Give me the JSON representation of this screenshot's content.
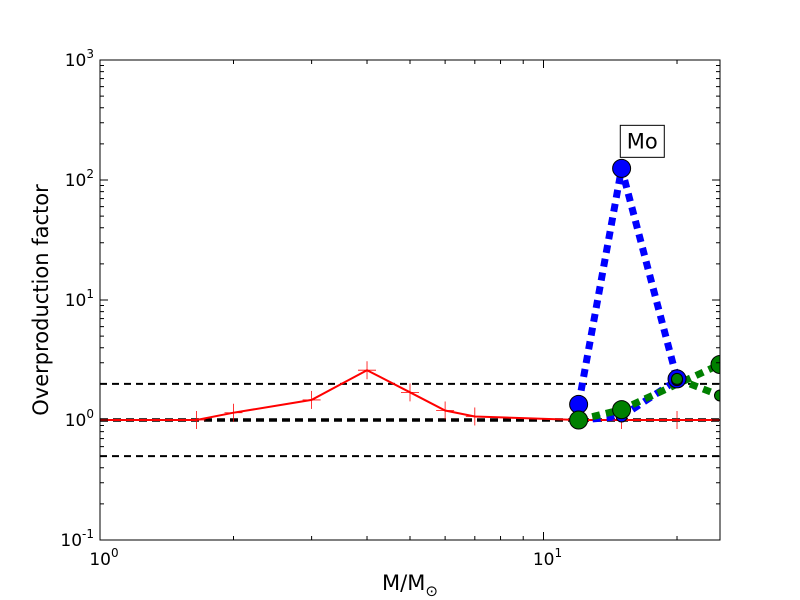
{
  "chart_data": {
    "type": "line",
    "xlabel": "M/M",
    "xlabel_subscript": "⊙",
    "ylabel": "Overproduction factor",
    "xscale": "log",
    "yscale": "log",
    "xlim": [
      1,
      25
    ],
    "ylim": [
      0.1,
      1000
    ],
    "x_ticks": [
      {
        "base": "10",
        "exp": "0",
        "value": 1
      },
      {
        "base": "10",
        "exp": "1",
        "value": 10
      }
    ],
    "y_ticks": [
      {
        "base": "10",
        "exp": "-1",
        "value": 0.1
      },
      {
        "base": "10",
        "exp": "0",
        "value": 1
      },
      {
        "base": "10",
        "exp": "1",
        "value": 10
      },
      {
        "base": "10",
        "exp": "2",
        "value": 100
      },
      {
        "base": "10",
        "exp": "3",
        "value": 1000
      }
    ],
    "reference_lines": [
      {
        "y": 2.0,
        "style": "dashed",
        "color": "#000000"
      },
      {
        "y": 1.0,
        "style": "dashed-bold",
        "color": "#000000"
      },
      {
        "y": 0.5,
        "style": "dashed",
        "color": "#000000"
      }
    ],
    "series": [
      {
        "color": "#ff0000",
        "line_style": "solid",
        "marker": "plus",
        "x": [
          1.0,
          1.65,
          2.0,
          3.0,
          4.0,
          5.0,
          6.0,
          7.0,
          12.0,
          15.0,
          20.0,
          25.0
        ],
        "y": [
          1.0,
          1.0,
          1.15,
          1.47,
          2.6,
          1.7,
          1.2,
          1.07,
          1.0,
          1.0,
          1.0,
          1.0
        ]
      },
      {
        "color": "#0000ff",
        "line_style": "dotted",
        "marker": "circle",
        "x": [
          12.0,
          15.0,
          20.0
        ],
        "y": [
          1.35,
          125.0,
          2.2
        ]
      },
      {
        "color": "#0000ff",
        "line_style": "dotted",
        "marker": "circle-small",
        "x": [
          12.0,
          15.0,
          20.0
        ],
        "y": [
          1.0,
          1.07,
          2.15
        ]
      },
      {
        "color": "#008000",
        "line_style": "dotted",
        "marker": "circle",
        "x": [
          12.0,
          15.0,
          25.0
        ],
        "y": [
          1.0,
          1.22,
          2.9
        ]
      },
      {
        "color": "#008000",
        "line_style": "dotted",
        "marker": "circle-small",
        "x": [
          20.0,
          25.0
        ],
        "y": [
          2.2,
          1.6
        ]
      }
    ],
    "annotations": [
      {
        "text": "Mo",
        "x": 16.7,
        "y": 210.0
      }
    ],
    "grid": false,
    "legend": "none"
  }
}
